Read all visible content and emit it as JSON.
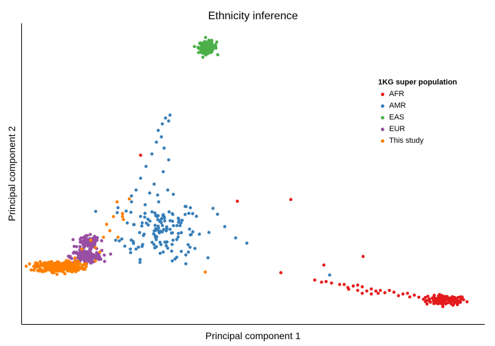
{
  "chart_data": {
    "type": "scatter",
    "title": "Ethnicity inference",
    "xlabel": "Principal component 1",
    "ylabel": "Principal component 2",
    "xlim": [
      0,
      1
    ],
    "ylim": [
      0,
      1
    ],
    "grid": false,
    "legend_position": "top-right",
    "legend_title": "1KG super population",
    "series": [
      {
        "name": "AFR",
        "color": "#e41a1c",
        "clusters": [
          {
            "cx": 0.925,
            "cy": 0.066,
            "sx": 0.022,
            "sy": 0.008,
            "n": 110
          }
        ],
        "points": [
          [
            0.25,
            0.558
          ],
          [
            0.464,
            0.402
          ],
          [
            0.582,
            0.408
          ],
          [
            0.655,
            0.186
          ],
          [
            0.742,
            0.215
          ],
          [
            0.56,
            0.16
          ],
          [
            0.635,
            0.135
          ],
          [
            0.65,
            0.128
          ],
          [
            0.66,
            0.13
          ],
          [
            0.672,
            0.125
          ],
          [
            0.69,
            0.12
          ],
          [
            0.708,
            0.11
          ],
          [
            0.72,
            0.115
          ],
          [
            0.73,
            0.118
          ],
          [
            0.74,
            0.112
          ],
          [
            0.75,
            0.098
          ],
          [
            0.76,
            0.105
          ],
          [
            0.77,
            0.098
          ],
          [
            0.78,
            0.1
          ],
          [
            0.79,
            0.092
          ],
          [
            0.8,
            0.1
          ],
          [
            0.82,
            0.082
          ],
          [
            0.83,
            0.088
          ],
          [
            0.845,
            0.078
          ],
          [
            0.855,
            0.084
          ],
          [
            0.865,
            0.077
          ],
          [
            0.875,
            0.07
          ],
          [
            0.885,
            0.08
          ],
          [
            0.895,
            0.074
          ],
          [
            0.74,
            0.09
          ],
          [
            0.76,
            0.088
          ],
          [
            0.81,
            0.094
          ],
          [
            0.84,
            0.09
          ],
          [
            0.7,
            0.12
          ],
          [
            0.71,
            0.104
          ],
          [
            0.73,
            0.1
          ],
          [
            0.775,
            0.09
          ]
        ]
      },
      {
        "name": "AMR",
        "color": "#377eb8",
        "clusters": [
          {
            "cx": 0.29,
            "cy": 0.31,
            "sx": 0.04,
            "sy": 0.05,
            "n": 120
          }
        ],
        "points": [
          [
            0.305,
            0.684
          ],
          [
            0.315,
            0.694
          ],
          [
            0.298,
            0.664
          ],
          [
            0.312,
            0.674
          ],
          [
            0.289,
            0.642
          ],
          [
            0.296,
            0.62
          ],
          [
            0.285,
            0.602
          ],
          [
            0.302,
            0.582
          ],
          [
            0.275,
            0.562
          ],
          [
            0.312,
            0.542
          ],
          [
            0.262,
            0.52
          ],
          [
            0.3,
            0.502
          ],
          [
            0.25,
            0.48
          ],
          [
            0.28,
            0.46
          ],
          [
            0.31,
            0.44
          ],
          [
            0.24,
            0.44
          ],
          [
            0.23,
            0.4
          ],
          [
            0.26,
            0.39
          ],
          [
            0.29,
            0.4
          ],
          [
            0.32,
            0.36
          ],
          [
            0.2,
            0.38
          ],
          [
            0.21,
            0.36
          ],
          [
            0.36,
            0.38
          ],
          [
            0.365,
            0.36
          ],
          [
            0.41,
            0.378
          ],
          [
            0.42,
            0.358
          ],
          [
            0.436,
            0.316
          ],
          [
            0.46,
            0.278
          ],
          [
            0.485,
            0.26
          ],
          [
            0.36,
            0.288
          ],
          [
            0.355,
            0.255
          ],
          [
            0.37,
            0.242
          ],
          [
            0.35,
            0.22
          ],
          [
            0.34,
            0.232
          ],
          [
            0.32,
            0.2
          ],
          [
            0.3,
            0.23
          ],
          [
            0.33,
            0.212
          ],
          [
            0.35,
            0.19
          ],
          [
            0.668,
            0.152
          ],
          [
            0.23,
            0.42
          ],
          [
            0.27,
            0.43
          ],
          [
            0.195,
            0.27
          ],
          [
            0.215,
            0.25
          ],
          [
            0.228,
            0.228
          ],
          [
            0.24,
            0.24
          ]
        ]
      },
      {
        "name": "EAS",
        "color": "#4daf4a",
        "clusters": [
          {
            "cx": 0.398,
            "cy": 0.924,
            "sx": 0.01,
            "sy": 0.01,
            "n": 150
          }
        ],
        "points": []
      },
      {
        "name": "EUR",
        "color": "#984ea3",
        "clusters": [
          {
            "cx": 0.135,
            "cy": 0.26,
            "sx": 0.012,
            "sy": 0.012,
            "n": 90
          },
          {
            "cx": 0.13,
            "cy": 0.215,
            "sx": 0.017,
            "sy": 0.01,
            "n": 160
          }
        ],
        "points": []
      },
      {
        "name": "This study",
        "color": "#ff7f00",
        "clusters": [
          {
            "cx": 0.07,
            "cy": 0.18,
            "sx": 0.025,
            "sy": 0.009,
            "n": 320
          }
        ],
        "points": [
          [
            0.198,
            0.4
          ],
          [
            0.225,
            0.41
          ],
          [
            0.21,
            0.36
          ],
          [
            0.19,
            0.35
          ],
          [
            0.175,
            0.324
          ],
          [
            0.182,
            0.302
          ],
          [
            0.168,
            0.28
          ],
          [
            0.2,
            0.28
          ],
          [
            0.15,
            0.245
          ],
          [
            0.16,
            0.23
          ],
          [
            0.14,
            0.27
          ],
          [
            0.12,
            0.24
          ],
          [
            0.13,
            0.19
          ],
          [
            0.15,
            0.2
          ],
          [
            0.105,
            0.21
          ],
          [
            0.393,
            0.162
          ],
          [
            0.21,
            0.35
          ],
          [
            0.212,
            0.34
          ]
        ]
      }
    ]
  }
}
